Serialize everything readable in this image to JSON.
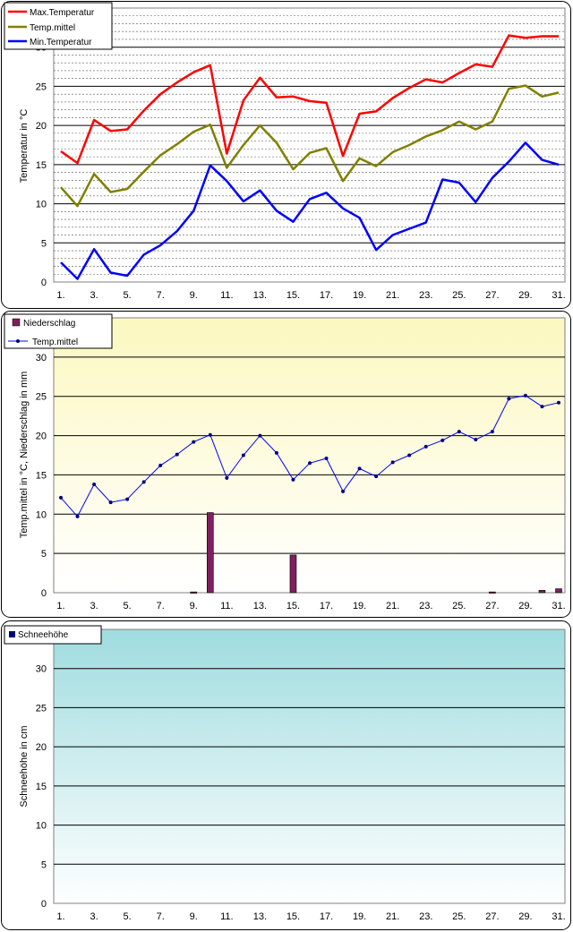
{
  "charts": [
    {
      "type": "line",
      "ylabel": "Temperatur in °C",
      "xticks": [
        "1.",
        "3.",
        "5.",
        "7.",
        "9.",
        "11.",
        "13.",
        "15.",
        "17.",
        "19.",
        "21.",
        "23.",
        "25.",
        "27.",
        "29.",
        "31."
      ],
      "ylim": [
        0,
        35
      ],
      "yticks": [
        "0",
        "5",
        "10",
        "15",
        "20",
        "25",
        "30"
      ],
      "legend_position": "top-left",
      "series": [
        {
          "name": "Max.Temperatur",
          "color": "#ff0000",
          "values": [
            16.7,
            15.2,
            20.7,
            19.3,
            19.5,
            21.9,
            24.0,
            25.5,
            26.8,
            27.7,
            16.4,
            23.2,
            26.1,
            23.6,
            23.7,
            23.1,
            22.9,
            16.1,
            21.5,
            21.8,
            23.5,
            24.8,
            25.9,
            25.5,
            26.7,
            27.8,
            27.5,
            31.5,
            31.2,
            31.4,
            31.4
          ]
        },
        {
          "name": "Temp.mittel",
          "color": "#808000",
          "values": [
            12.1,
            9.7,
            13.8,
            11.5,
            11.9,
            14.1,
            16.2,
            17.6,
            19.2,
            20.1,
            14.6,
            17.5,
            20.0,
            17.8,
            14.4,
            16.5,
            17.1,
            12.9,
            15.8,
            14.8,
            16.6,
            17.5,
            18.6,
            19.4,
            20.5,
            19.5,
            20.5,
            24.7,
            25.1,
            23.7,
            24.2
          ]
        },
        {
          "name": "Min.Temperatur",
          "color": "#0000ff",
          "values": [
            2.5,
            0.4,
            4.2,
            1.2,
            0.8,
            3.5,
            4.7,
            6.5,
            9.1,
            14.9,
            12.9,
            10.3,
            11.7,
            9.1,
            7.7,
            10.6,
            11.4,
            9.4,
            8.2,
            4.1,
            6.0,
            6.8,
            7.6,
            13.1,
            12.7,
            10.2,
            13.3,
            15.4,
            17.8,
            15.6,
            15.0
          ]
        }
      ]
    },
    {
      "type": "bar+line",
      "ylabel": "Temp.mittel  in °C, Niederschlag in mm",
      "xticks": [
        "1.",
        "3.",
        "5.",
        "7.",
        "9.",
        "11.",
        "13.",
        "15.",
        "17.",
        "19.",
        "21.",
        "23.",
        "25.",
        "27.",
        "29.",
        "31."
      ],
      "ylim": [
        0,
        35
      ],
      "yticks": [
        "0",
        "5",
        "10",
        "15",
        "20",
        "25",
        "30"
      ],
      "legend_position": "top-left",
      "bar_series": {
        "name": "Niederschlag",
        "color": "#7f1f5f",
        "values": [
          0,
          0,
          0,
          0,
          0,
          0,
          0,
          0,
          0.1,
          10.2,
          0,
          0,
          0,
          0,
          4.8,
          0,
          0,
          0,
          0,
          0,
          0,
          0,
          0,
          0,
          0,
          0,
          0.1,
          0,
          0,
          0.3,
          0.5
        ]
      },
      "line_series": {
        "name": "Temp.mittel",
        "color": "#0000ff",
        "values": [
          12.1,
          9.7,
          13.8,
          11.5,
          11.9,
          14.1,
          16.2,
          17.6,
          19.2,
          20.1,
          14.6,
          17.5,
          20.0,
          17.8,
          14.4,
          16.5,
          17.1,
          12.9,
          15.8,
          14.8,
          16.6,
          17.5,
          18.6,
          19.4,
          20.5,
          19.5,
          20.5,
          24.7,
          25.1,
          23.7,
          24.2
        ]
      }
    },
    {
      "type": "bar",
      "ylabel": "Schneehöhe in cm",
      "xticks": [
        "1.",
        "3.",
        "5.",
        "7.",
        "9.",
        "11.",
        "13.",
        "15.",
        "17.",
        "19.",
        "21.",
        "23.",
        "25.",
        "27.",
        "29.",
        "31."
      ],
      "ylim": [
        0,
        35
      ],
      "yticks": [
        "0",
        "5",
        "10",
        "15",
        "20",
        "25",
        "30"
      ],
      "legend_position": "top-left",
      "bar_series": {
        "name": "Schneehöhe",
        "color": "#000080",
        "values": [
          0,
          0,
          0,
          0,
          0,
          0,
          0,
          0,
          0,
          0,
          0,
          0,
          0,
          0,
          0,
          0,
          0,
          0,
          0,
          0,
          0,
          0,
          0,
          0,
          0,
          0,
          0,
          0,
          0,
          0,
          0
        ]
      }
    }
  ]
}
